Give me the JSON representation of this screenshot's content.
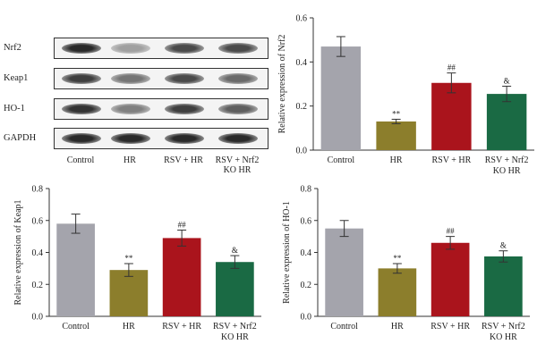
{
  "blot": {
    "rows": [
      {
        "label": "Nrf2",
        "band_intensity": [
          0.9,
          0.35,
          0.75,
          0.75
        ]
      },
      {
        "label": "Keap1",
        "band_intensity": [
          0.8,
          0.55,
          0.75,
          0.6
        ]
      },
      {
        "label": "HO-1",
        "band_intensity": [
          0.85,
          0.5,
          0.8,
          0.65
        ]
      },
      {
        "label": "GAPDH",
        "band_intensity": [
          0.9,
          0.9,
          0.9,
          0.9
        ]
      }
    ],
    "lanes": [
      "Control",
      "HR",
      "RSV + HR",
      "RSV + Nrf2\nKO HR"
    ]
  },
  "chart_data": [
    {
      "type": "bar",
      "id": "nrf2",
      "ylabel": "Relative expression of Nrf2",
      "ylim": [
        0,
        0.6
      ],
      "yticks": [
        0,
        0.2,
        0.4,
        0.6
      ],
      "categories": [
        "Control",
        "HR",
        "RSV + HR",
        "RSV + Nrf2\nKO HR"
      ],
      "values": [
        0.47,
        0.13,
        0.305,
        0.255
      ],
      "errors": [
        0.045,
        0.01,
        0.045,
        0.035
      ],
      "annotations": [
        "",
        "**",
        "##",
        "&"
      ],
      "colors": [
        "#a4a4ac",
        "#8c7e2c",
        "#aa141c",
        "#1a6a44"
      ]
    },
    {
      "type": "bar",
      "id": "keap1",
      "ylabel": "Relative expression of Keap1",
      "ylim": [
        0,
        0.8
      ],
      "yticks": [
        0,
        0.2,
        0.4,
        0.6,
        0.8
      ],
      "categories": [
        "Control",
        "HR",
        "RSV + HR",
        "RSV + Nrf2\nKO HR"
      ],
      "values": [
        0.58,
        0.29,
        0.49,
        0.34
      ],
      "errors": [
        0.06,
        0.04,
        0.05,
        0.04
      ],
      "annotations": [
        "",
        "**",
        "##",
        "&"
      ],
      "colors": [
        "#a4a4ac",
        "#8c7e2c",
        "#aa141c",
        "#1a6a44"
      ]
    },
    {
      "type": "bar",
      "id": "ho1",
      "ylabel": "Relative expression of HO-1",
      "ylim": [
        0,
        0.8
      ],
      "yticks": [
        0,
        0.2,
        0.4,
        0.6,
        0.8
      ],
      "categories": [
        "Control",
        "HR",
        "RSV + HR",
        "RSV + Nrf2\nKO HR"
      ],
      "values": [
        0.55,
        0.3,
        0.46,
        0.375
      ],
      "errors": [
        0.05,
        0.03,
        0.04,
        0.035
      ],
      "annotations": [
        "",
        "**",
        "##",
        "&"
      ],
      "colors": [
        "#a4a4ac",
        "#8c7e2c",
        "#aa141c",
        "#1a6a44"
      ]
    }
  ]
}
